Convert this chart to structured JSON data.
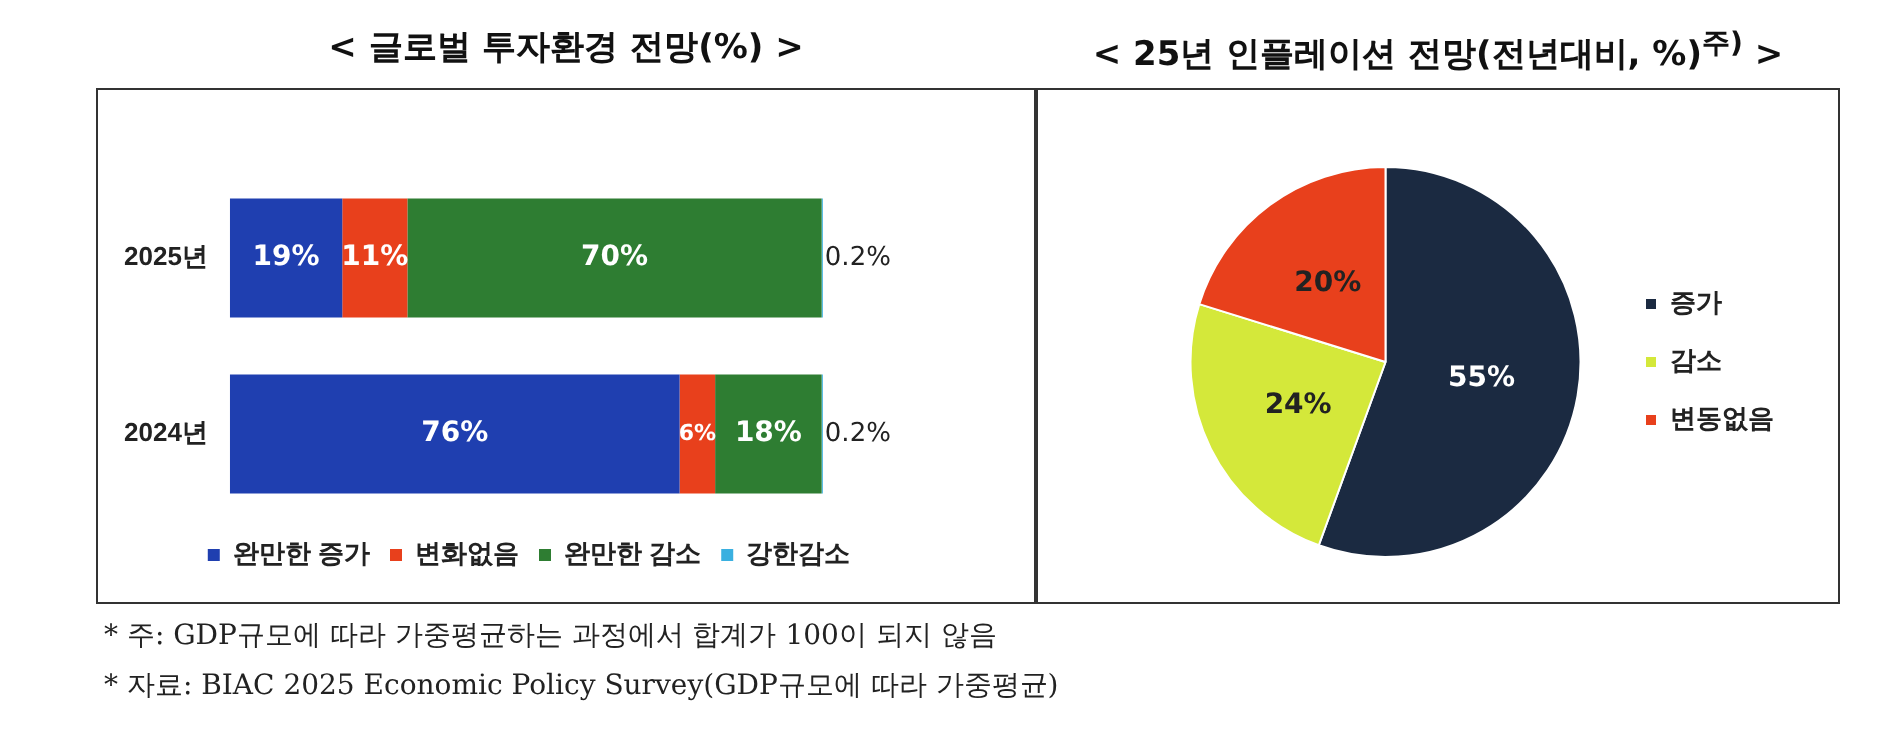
{
  "chart_data": [
    {
      "type": "bar",
      "title": "< 글로벌 투자환경 전망(%) >",
      "orientation": "horizontal",
      "stacked": true,
      "categories": [
        "2025년",
        "2024년"
      ],
      "series": [
        {
          "name": "완만한 증가",
          "color": "#1f3fb0",
          "values": [
            19,
            76
          ],
          "value_labels": [
            "19%",
            "76%"
          ]
        },
        {
          "name": "변화없음",
          "color": "#e8401c",
          "values": [
            11,
            6
          ],
          "value_labels": [
            "11%",
            "6%"
          ]
        },
        {
          "name": "완만한 감소",
          "color": "#2e7d32",
          "values": [
            70,
            18
          ],
          "value_labels": [
            "70%",
            "18%"
          ]
        },
        {
          "name": "강한감소",
          "color": "#3ab0e0",
          "values": [
            0.2,
            0.2
          ],
          "value_labels": [
            "0.2%",
            "0.2%"
          ]
        }
      ],
      "legend": "bottom",
      "grid": false,
      "tick_labels": "y",
      "annotations": [
        "* 주: GDP규모에 따라 가중평균하는 과정에서 합계가 100이 되지 않음",
        "* 자료: BIAC 2025 Economic Policy Survey(GDP규모에 따라 가중평균)"
      ]
    },
    {
      "type": "pie",
      "title": "< 25년 인플레이션 전망(전년대비, %)$^{주)}$ >",
      "categories": [
        "증가",
        "감소",
        "변동없음"
      ],
      "values": [
        55,
        24,
        20
      ],
      "colors": [
        "#1b2a41",
        "#d4e83a",
        "#e8401c"
      ],
      "value_labels": [
        "55%",
        "24%",
        "20%"
      ],
      "legend": "right"
    }
  ]
}
